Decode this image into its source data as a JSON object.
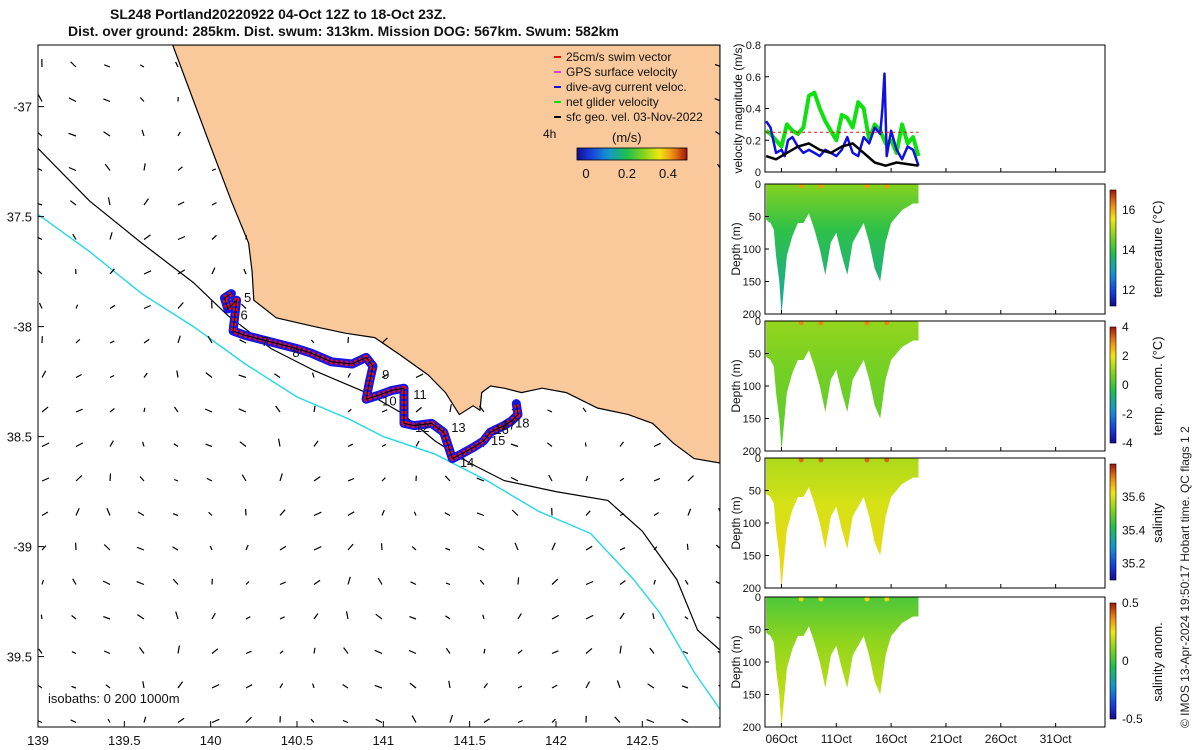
{
  "title": {
    "line1": "SL248 Portland20220922 04-Oct 12Z to 18-Oct 23Z.",
    "line2": "Dist. over ground: 285km. Dist. swum: 313km. Mission DOG: 567km. Swum: 582km"
  },
  "credit": "© IMOS 13-Apr-2024 19:50:17 Hobart time. QC flags 1  2",
  "chart_data": [
    {
      "id": "map",
      "type": "scatter",
      "title": "Glider track and surface geostrophic velocity",
      "x_ticks": [
        139,
        139.5,
        140,
        140.5,
        141,
        141.5,
        142,
        142.5
      ],
      "x_tick_labels": [
        "139",
        "139.5",
        "140",
        "140.5",
        "141",
        "141.5",
        "142",
        "142.5"
      ],
      "y_ticks": [
        -37,
        -37.5,
        -38,
        -38.5,
        -39,
        -39.5
      ],
      "y_tick_labels": [
        "-37",
        "37.5",
        "-38",
        "38.5",
        "-39",
        "39.5"
      ],
      "xlim": [
        139.0,
        142.95
      ],
      "ylim": [
        -39.82,
        -36.72
      ],
      "legend": [
        "25cm/s swim vector",
        "GPS surface velocity",
        "dive-avg current veloc.",
        "net glider velocity",
        "sfc geo. vel. 03-Nov-2022"
      ],
      "legend_colors": [
        "#e01010",
        "#e040e0",
        "#1010e0",
        "#10e010",
        "#000000"
      ],
      "interval_label": "4h",
      "colorbar_label": "(m/s)",
      "colorbar_ticks": [
        "0",
        "0.2",
        "0.4"
      ],
      "isobaths_label": "isobaths: 0   200  1000m",
      "coast": [
        [
          139.78,
          -36.72
        ],
        [
          139.98,
          -37.14
        ],
        [
          140.12,
          -37.43
        ],
        [
          140.22,
          -37.62
        ],
        [
          140.24,
          -37.75
        ],
        [
          140.25,
          -37.88
        ],
        [
          140.38,
          -37.96
        ],
        [
          140.6,
          -38.0
        ],
        [
          140.78,
          -38.03
        ],
        [
          140.95,
          -38.05
        ],
        [
          141.1,
          -38.13
        ],
        [
          141.26,
          -38.22
        ],
        [
          141.36,
          -38.3
        ],
        [
          141.44,
          -38.4
        ],
        [
          141.52,
          -38.36
        ],
        [
          141.56,
          -38.38
        ],
        [
          141.57,
          -38.3
        ],
        [
          141.62,
          -38.27
        ],
        [
          141.7,
          -38.28
        ],
        [
          141.8,
          -38.3
        ],
        [
          141.92,
          -38.28
        ],
        [
          142.06,
          -38.3
        ],
        [
          142.24,
          -38.37
        ],
        [
          142.42,
          -38.4
        ],
        [
          142.56,
          -38.44
        ],
        [
          142.68,
          -38.53
        ],
        [
          142.8,
          -38.6
        ],
        [
          142.95,
          -38.62
        ]
      ],
      "isobath_200": [
        [
          139.0,
          -37.19
        ],
        [
          139.3,
          -37.43
        ],
        [
          139.6,
          -37.62
        ],
        [
          139.9,
          -37.8
        ],
        [
          140.1,
          -37.95
        ],
        [
          140.35,
          -38.1
        ],
        [
          140.6,
          -38.2
        ],
        [
          140.9,
          -38.3
        ],
        [
          141.1,
          -38.39
        ],
        [
          141.3,
          -38.52
        ],
        [
          141.5,
          -38.62
        ],
        [
          141.7,
          -38.7
        ],
        [
          142.0,
          -38.75
        ],
        [
          142.3,
          -38.79
        ],
        [
          142.5,
          -38.93
        ],
        [
          142.7,
          -39.15
        ],
        [
          142.82,
          -39.38
        ],
        [
          142.95,
          -39.47
        ]
      ],
      "isobath_1000": [
        [
          139.0,
          -37.49
        ],
        [
          139.3,
          -37.66
        ],
        [
          139.6,
          -37.85
        ],
        [
          139.9,
          -38.0
        ],
        [
          140.2,
          -38.17
        ],
        [
          140.5,
          -38.32
        ],
        [
          140.8,
          -38.42
        ],
        [
          141.0,
          -38.5
        ],
        [
          141.3,
          -38.58
        ],
        [
          141.6,
          -38.7
        ],
        [
          141.9,
          -38.84
        ],
        [
          142.2,
          -38.94
        ],
        [
          142.45,
          -39.15
        ],
        [
          142.6,
          -39.3
        ],
        [
          142.8,
          -39.57
        ],
        [
          142.95,
          -39.74
        ]
      ],
      "track_points": [
        [
          140.12,
          -37.85
        ],
        [
          140.08,
          -37.87
        ],
        [
          140.1,
          -37.92
        ],
        [
          140.15,
          -37.88
        ],
        [
          140.14,
          -37.95
        ],
        [
          140.13,
          -38.02
        ],
        [
          140.2,
          -38.04
        ],
        [
          140.35,
          -38.07
        ],
        [
          140.5,
          -38.1
        ],
        [
          140.58,
          -38.12
        ],
        [
          140.7,
          -38.16
        ],
        [
          140.82,
          -38.17
        ],
        [
          140.9,
          -38.14
        ],
        [
          140.94,
          -38.18
        ],
        [
          140.92,
          -38.25
        ],
        [
          140.9,
          -38.33
        ],
        [
          140.98,
          -38.31
        ],
        [
          141.05,
          -38.29
        ],
        [
          141.12,
          -38.28
        ],
        [
          141.12,
          -38.36
        ],
        [
          141.12,
          -38.44
        ],
        [
          141.18,
          -38.45
        ],
        [
          141.28,
          -38.44
        ],
        [
          141.35,
          -38.48
        ],
        [
          141.4,
          -38.6
        ],
        [
          141.45,
          -38.58
        ],
        [
          141.52,
          -38.55
        ],
        [
          141.58,
          -38.52
        ],
        [
          141.62,
          -38.48
        ],
        [
          141.7,
          -38.45
        ],
        [
          141.74,
          -38.43
        ],
        [
          141.78,
          -38.4
        ],
        [
          141.77,
          -38.35
        ]
      ],
      "day_labels": [
        {
          "text": "5",
          "lon": 140.17,
          "lat": -37.87
        },
        {
          "text": "6",
          "lon": 140.15,
          "lat": -37.95
        },
        {
          "text": "7",
          "lon": 140.27,
          "lat": -38.07
        },
        {
          "text": "8",
          "lon": 140.45,
          "lat": -38.12
        },
        {
          "text": "9",
          "lon": 140.97,
          "lat": -38.22
        },
        {
          "text": "10",
          "lon": 140.97,
          "lat": -38.34
        },
        {
          "text": "11",
          "lon": 141.15,
          "lat": -38.31
        },
        {
          "text": "12",
          "lon": 141.16,
          "lat": -38.46
        },
        {
          "text": "13",
          "lon": 141.37,
          "lat": -38.46
        },
        {
          "text": "14",
          "lon": 141.42,
          "lat": -38.62
        },
        {
          "text": "15",
          "lon": 141.6,
          "lat": -38.52
        },
        {
          "text": "16",
          "lon": 141.62,
          "lat": -38.47
        },
        {
          "text": "17",
          "lon": 141.66,
          "lat": -38.45
        },
        {
          "text": "18",
          "lon": 141.74,
          "lat": -38.44
        }
      ]
    },
    {
      "id": "velocity",
      "type": "line",
      "ylabel": "velocity magnitude (m/s)",
      "ylim": [
        0,
        0.8
      ],
      "y_ticks": [
        0,
        0.2,
        0.4,
        0.6,
        0.8
      ],
      "y_tick_labels": [
        "0",
        "0.2",
        "0.4",
        "0.6",
        "0.8"
      ],
      "xlim": [
        4.5,
        35.5
      ],
      "series": [
        {
          "name": "net glider velocity",
          "color": "#10e010",
          "x": [
            4.6,
            5.0,
            5.5,
            6.0,
            6.5,
            7.0,
            7.5,
            8.0,
            8.5,
            9.0,
            9.5,
            10.0,
            10.5,
            11.0,
            11.5,
            12.0,
            12.5,
            13.0,
            13.5,
            14.0,
            14.5,
            15.0,
            15.5,
            16.0,
            16.5,
            17.0,
            17.5,
            18.0,
            18.5
          ],
          "values": [
            0.26,
            0.24,
            0.2,
            0.16,
            0.3,
            0.26,
            0.24,
            0.28,
            0.48,
            0.5,
            0.4,
            0.32,
            0.26,
            0.2,
            0.36,
            0.34,
            0.28,
            0.44,
            0.4,
            0.2,
            0.3,
            0.26,
            0.18,
            0.2,
            0.12,
            0.3,
            0.18,
            0.22,
            0.1
          ]
        },
        {
          "name": "dive-avg current veloc.",
          "color": "#1010e0",
          "x": [
            4.6,
            5.0,
            5.5,
            6.0,
            6.3,
            6.6,
            7.0,
            7.5,
            8.0,
            8.5,
            9.0,
            9.5,
            10.0,
            10.5,
            11.0,
            11.5,
            12.0,
            12.5,
            13.0,
            13.5,
            14.0,
            14.5,
            15.0,
            15.2,
            15.4,
            15.6,
            16.0,
            16.5,
            17.0,
            17.5,
            18.0,
            18.5
          ],
          "values": [
            0.32,
            0.28,
            0.12,
            0.14,
            0.1,
            0.2,
            0.22,
            0.16,
            0.12,
            0.14,
            0.12,
            0.1,
            0.14,
            0.12,
            0.1,
            0.14,
            0.22,
            0.12,
            0.1,
            0.22,
            0.18,
            0.28,
            0.24,
            0.4,
            0.62,
            0.1,
            0.26,
            0.14,
            0.08,
            0.16,
            0.14,
            0.04
          ]
        },
        {
          "name": "sfc geo. vel.",
          "color": "#000000",
          "x": [
            4.6,
            5.5,
            6.5,
            7.5,
            8.5,
            9.5,
            10.5,
            11.5,
            12.5,
            13.5,
            14.5,
            15.5,
            16.5,
            17.5,
            18.5
          ],
          "values": [
            0.1,
            0.08,
            0.12,
            0.16,
            0.18,
            0.14,
            0.12,
            0.16,
            0.18,
            0.12,
            0.06,
            0.04,
            0.06,
            0.05,
            0.04
          ]
        },
        {
          "name": "swim speed ref",
          "color": "#e01010",
          "x": [
            4.6,
            18.5
          ],
          "values": [
            0.25,
            0.25
          ]
        }
      ]
    },
    {
      "id": "temperature",
      "type": "heatmap",
      "ylabel": "Depth (m)",
      "ylim": [
        0,
        200
      ],
      "y_ticks": [
        0,
        50,
        100,
        150,
        200
      ],
      "xlim": [
        4.5,
        35.5
      ],
      "colorbar_label": "temperature (°C)",
      "clim": [
        11.2,
        17.0
      ],
      "colorbar_ticks": [
        12,
        14,
        16
      ],
      "colorbar_tick_labels": [
        "12",
        "14",
        "16"
      ],
      "surface_value": 14.7,
      "deep_value": 13.2
    },
    {
      "id": "temp_anom",
      "type": "heatmap",
      "ylabel": "Depth (m)",
      "ylim": [
        0,
        200
      ],
      "y_ticks": [
        0,
        50,
        100,
        150,
        200
      ],
      "xlim": [
        4.5,
        35.5
      ],
      "colorbar_label": "temp. anom. (°C)",
      "clim": [
        -4,
        4
      ],
      "colorbar_ticks": [
        -4,
        -2,
        0,
        2,
        4
      ],
      "colorbar_tick_labels": [
        "-4",
        "-2",
        "0",
        "2",
        "4"
      ],
      "surface_value": 1.0,
      "deep_value": 0.3
    },
    {
      "id": "salinity",
      "type": "heatmap",
      "ylabel": "Depth (m)",
      "ylim": [
        0,
        200
      ],
      "y_ticks": [
        0,
        50,
        100,
        150,
        200
      ],
      "xlim": [
        4.5,
        35.5
      ],
      "colorbar_label": "salinity",
      "clim": [
        35.1,
        35.8
      ],
      "colorbar_ticks": [
        35.2,
        35.4,
        35.6
      ],
      "colorbar_tick_labels": [
        "35.2",
        "35.4",
        "35.6"
      ],
      "surface_value": 35.56,
      "deep_value": 35.64
    },
    {
      "id": "sal_anom",
      "type": "heatmap",
      "ylabel": "Depth (m)",
      "ylim": [
        0,
        200
      ],
      "y_ticks": [
        0,
        50,
        100,
        150,
        200
      ],
      "xlim": [
        4.5,
        35.5
      ],
      "x_ticks": [
        6,
        11,
        16,
        21,
        26,
        31
      ],
      "x_tick_labels": [
        "06Oct",
        "11Oct",
        "16Oct",
        "21Oct",
        "26Oct",
        "31Oct"
      ],
      "colorbar_label": "salinity anom.",
      "clim": [
        -0.5,
        0.5
      ],
      "colorbar_ticks": [
        -0.5,
        0,
        0.5
      ],
      "colorbar_tick_labels": [
        "-0.5",
        "0",
        "0.5"
      ],
      "surface_value": 0.02,
      "deep_value": 0.22
    }
  ]
}
